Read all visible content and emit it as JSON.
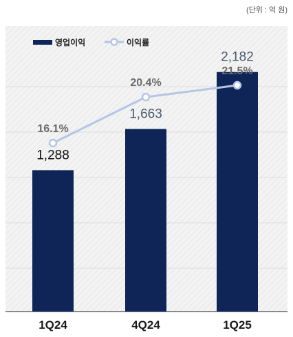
{
  "unit_note": "(단위 : 억 원)",
  "colors": {
    "bar": "#0f2557",
    "line": "#b4c6e4",
    "plot_bg": "#f2f2f2",
    "stripe": "#e9e9e9",
    "grid": "#dddddd",
    "rate_text": "#6b6b6b"
  },
  "chart_data": {
    "type": "bar",
    "categories": [
      "1Q24",
      "4Q24",
      "1Q25"
    ],
    "series": [
      {
        "name": "영업이익",
        "type": "bar",
        "values": [
          1288,
          1663,
          2182
        ],
        "labels": [
          "1,288",
          "1,663",
          "2,182"
        ],
        "label_colors": [
          "#111111",
          "#4a5a70",
          "#4a5a70"
        ]
      },
      {
        "name": "이익률",
        "type": "line",
        "values": [
          16.1,
          20.4,
          21.5
        ],
        "labels": [
          "16.1%",
          "20.4%",
          "21.5%"
        ]
      }
    ],
    "title": "",
    "xlabel": "",
    "ylabel": "",
    "ylim": [
      0,
      2600
    ],
    "legend_position": "top-left",
    "grid": true
  }
}
